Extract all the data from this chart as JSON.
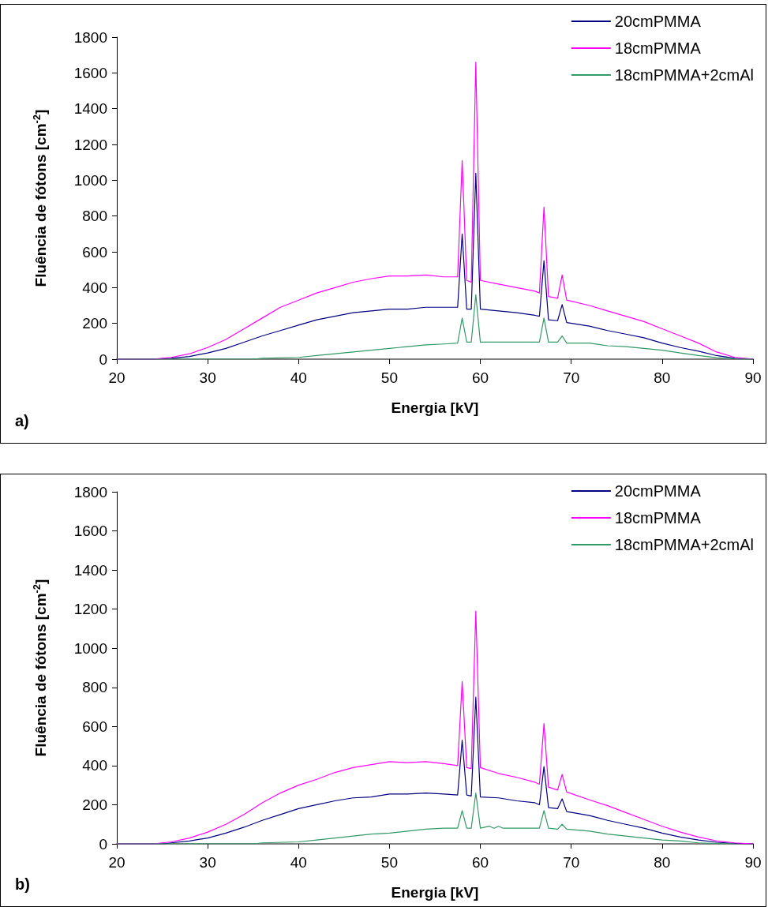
{
  "chart_data": [
    {
      "type": "line",
      "xlabel": "Energia [kV]",
      "ylabel": "Fluência de fótons [cm$^{-2}$]",
      "annotations": [
        "a)"
      ],
      "xlim": [
        20,
        90
      ],
      "xticks": [
        20,
        30,
        40,
        50,
        60,
        70,
        80,
        90
      ],
      "ylim": [
        0,
        1800
      ],
      "yticks": [
        0,
        200,
        400,
        600,
        800,
        1000,
        1200,
        1400,
        1600,
        1800
      ],
      "grid": false,
      "legend": "top right",
      "marker": "none",
      "line_style": "solid",
      "series": [
        {
          "name": "20cmPMMA",
          "color": "#000080",
          "x": [
            20,
            24,
            26,
            28,
            30,
            32,
            34,
            36,
            38,
            40,
            42,
            44,
            46,
            48,
            50,
            52,
            54,
            56,
            57.5,
            58,
            58.5,
            59,
            59.5,
            60,
            62,
            64,
            66,
            66.5,
            67,
            67.5,
            68.5,
            69,
            69.5,
            72,
            74,
            76,
            78,
            80,
            82,
            84,
            86,
            88,
            90
          ],
          "values": [
            0,
            0,
            5,
            15,
            35,
            60,
            95,
            130,
            160,
            190,
            220,
            240,
            260,
            270,
            280,
            280,
            290,
            290,
            290,
            700,
            280,
            280,
            1040,
            280,
            270,
            260,
            245,
            240,
            550,
            220,
            215,
            305,
            205,
            185,
            160,
            140,
            120,
            90,
            65,
            45,
            20,
            5,
            0
          ]
        },
        {
          "name": "18cmPMMA",
          "color": "#ff00ff",
          "x": [
            20,
            24,
            25,
            26,
            28,
            30,
            32,
            34,
            36,
            38,
            40,
            42,
            44,
            46,
            48,
            50,
            52,
            54,
            56,
            57.5,
            58,
            58.5,
            59,
            59.5,
            60,
            62,
            64,
            66,
            66.5,
            67,
            67.5,
            68.5,
            69,
            69.5,
            72,
            74,
            76,
            78,
            80,
            82,
            84,
            86,
            88,
            89,
            90
          ],
          "values": [
            0,
            0,
            5,
            10,
            30,
            65,
            110,
            170,
            230,
            290,
            330,
            370,
            400,
            430,
            450,
            465,
            465,
            470,
            460,
            460,
            1110,
            440,
            430,
            1660,
            440,
            420,
            400,
            380,
            370,
            850,
            350,
            340,
            470,
            330,
            300,
            270,
            240,
            210,
            170,
            130,
            90,
            40,
            10,
            5,
            0
          ]
        },
        {
          "name": "18cmPMMA+2cmAl",
          "color": "#339966",
          "x": [
            20,
            35,
            36,
            40,
            42,
            44,
            46,
            48,
            50,
            52,
            54,
            56,
            57.5,
            58,
            58.5,
            59,
            59.5,
            60,
            66.5,
            67,
            67.5,
            68.5,
            69,
            69.5,
            72,
            74,
            76,
            78,
            80,
            82,
            84,
            86,
            88,
            90
          ],
          "values": [
            0,
            0,
            5,
            10,
            20,
            30,
            40,
            50,
            60,
            70,
            80,
            85,
            90,
            230,
            95,
            95,
            360,
            95,
            95,
            230,
            95,
            95,
            130,
            90,
            90,
            75,
            70,
            60,
            50,
            35,
            20,
            8,
            2,
            0
          ]
        }
      ]
    },
    {
      "type": "line",
      "xlabel": "Energia [kV]",
      "ylabel": "Fluência de fótons [cm$^{-2}$]",
      "annotations": [
        "b)"
      ],
      "xlim": [
        20,
        90
      ],
      "xticks": [
        20,
        30,
        40,
        50,
        60,
        70,
        80,
        90
      ],
      "ylim": [
        0,
        1800
      ],
      "yticks": [
        0,
        200,
        400,
        600,
        800,
        1000,
        1200,
        1400,
        1600,
        1800
      ],
      "grid": false,
      "legend": "top right",
      "marker": "none",
      "line_style": "solid",
      "series": [
        {
          "name": "20cmPMMA",
          "color": "#000080",
          "x": [
            20,
            25,
            26,
            28,
            30,
            32,
            34,
            36,
            38,
            40,
            42,
            44,
            46,
            48,
            50,
            52,
            54,
            56,
            57.5,
            58,
            58.5,
            59,
            59.5,
            60,
            62,
            64,
            66,
            66.5,
            67,
            67.5,
            68.5,
            69,
            69.5,
            72,
            74,
            76,
            78,
            80,
            82,
            84,
            86,
            88,
            90
          ],
          "values": [
            0,
            0,
            5,
            15,
            30,
            55,
            85,
            120,
            150,
            180,
            200,
            220,
            235,
            240,
            255,
            255,
            260,
            255,
            250,
            530,
            250,
            245,
            750,
            240,
            235,
            220,
            210,
            200,
            395,
            185,
            180,
            230,
            165,
            145,
            120,
            100,
            80,
            55,
            35,
            20,
            8,
            2,
            0
          ]
        },
        {
          "name": "18cmPMMA",
          "color": "#ff00ff",
          "x": [
            20,
            24,
            25,
            26,
            28,
            30,
            32,
            34,
            36,
            38,
            40,
            42,
            44,
            46,
            48,
            50,
            52,
            54,
            56,
            57.5,
            58,
            58.5,
            59,
            59.5,
            60,
            62,
            64,
            66,
            66.5,
            67,
            67.5,
            68.5,
            69,
            69.5,
            72,
            74,
            76,
            78,
            80,
            82,
            84,
            86,
            88,
            90
          ],
          "values": [
            0,
            0,
            5,
            10,
            30,
            60,
            100,
            150,
            210,
            260,
            300,
            330,
            365,
            390,
            405,
            420,
            415,
            420,
            410,
            400,
            830,
            390,
            385,
            1190,
            390,
            360,
            340,
            315,
            305,
            615,
            290,
            275,
            355,
            265,
            225,
            195,
            160,
            125,
            90,
            60,
            35,
            15,
            5,
            0
          ]
        },
        {
          "name": "18cmPMMA+2cmAl",
          "color": "#339966",
          "x": [
            20,
            35,
            36,
            40,
            42,
            44,
            46,
            48,
            50,
            52,
            54,
            56,
            57.5,
            58,
            58.5,
            59,
            59.5,
            60,
            61,
            61.5,
            62,
            62.5,
            66.5,
            67,
            67.5,
            68.5,
            69,
            69.5,
            72,
            74,
            76,
            78,
            80,
            82,
            84,
            86,
            88
          ],
          "values": [
            0,
            0,
            5,
            10,
            20,
            30,
            40,
            50,
            55,
            65,
            75,
            80,
            80,
            170,
            80,
            80,
            260,
            80,
            90,
            80,
            90,
            80,
            80,
            170,
            80,
            75,
            100,
            75,
            65,
            50,
            40,
            30,
            20,
            15,
            5,
            2,
            0
          ]
        }
      ]
    }
  ]
}
